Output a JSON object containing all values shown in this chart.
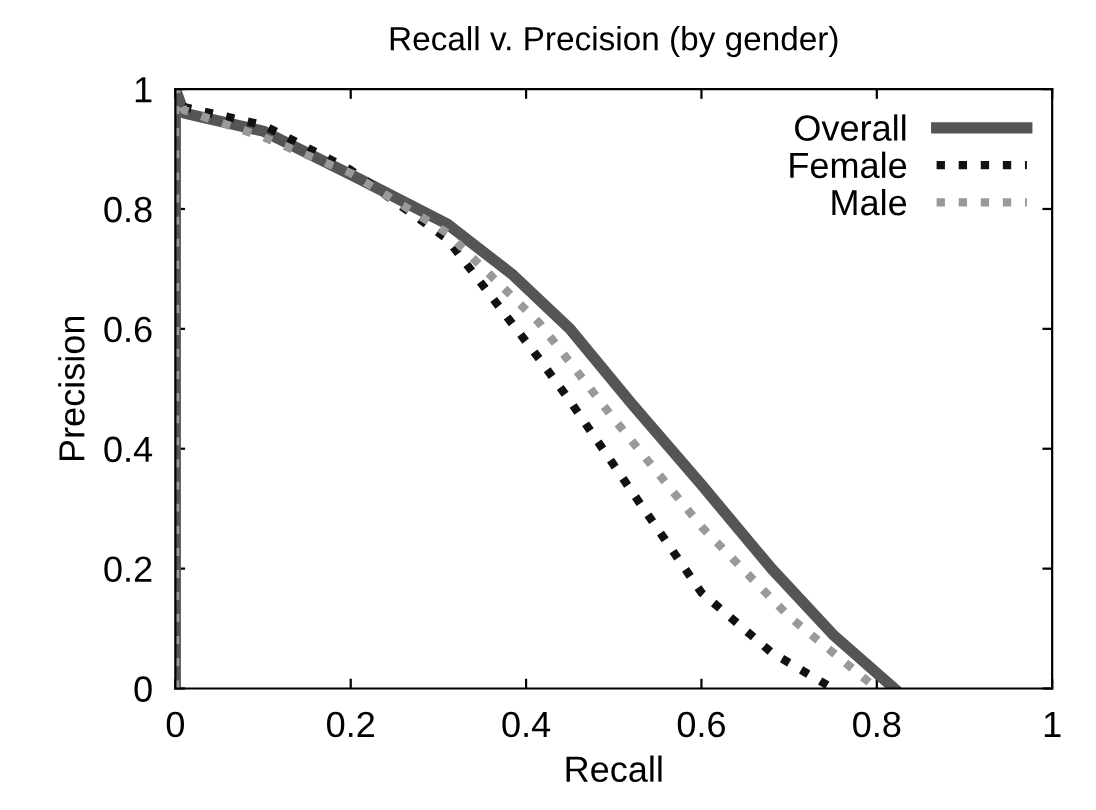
{
  "chart_data": {
    "type": "line",
    "title": "Recall v. Precision (by gender)",
    "xlabel": "Recall",
    "ylabel": "Precision",
    "xlim": [
      0,
      1
    ],
    "ylim": [
      0,
      1
    ],
    "xticks": [
      0,
      0.2,
      0.4,
      0.6,
      0.8,
      1
    ],
    "yticks": [
      0,
      0.2,
      0.4,
      0.6,
      0.8,
      1
    ],
    "grid": false,
    "legend": "top right",
    "marker": "none",
    "series": [
      {
        "name": "Overall",
        "color": "#555555",
        "line_style": "solid",
        "x": [
          0,
          0,
          0.01,
          0.1,
          0.21,
          0.31,
          0.385,
          0.45,
          0.52,
          0.6,
          0.68,
          0.75,
          0.82
        ],
        "values": [
          0,
          1,
          0.96,
          0.93,
          0.85,
          0.775,
          0.69,
          0.6,
          0.476,
          0.34,
          0.2,
          0.09,
          0
        ]
      },
      {
        "name": "Female",
        "color": "#111111",
        "line_style": "dotted",
        "x": [
          0,
          0,
          0.01,
          0.1,
          0.2,
          0.31,
          0.415,
          0.45,
          0.52,
          0.6,
          0.68,
          0.75
        ],
        "values": [
          0,
          1,
          0.97,
          0.94,
          0.865,
          0.75,
          0.55,
          0.48,
          0.33,
          0.16,
          0.06,
          0
        ]
      },
      {
        "name": "Male",
        "color": "#999999",
        "line_style": "dotted",
        "x": [
          0,
          0,
          0.01,
          0.1,
          0.2,
          0.31,
          0.415,
          0.5,
          0.6,
          0.7,
          0.8
        ],
        "values": [
          0,
          1,
          0.965,
          0.92,
          0.86,
          0.76,
          0.61,
          0.45,
          0.27,
          0.12,
          0
        ]
      }
    ]
  }
}
